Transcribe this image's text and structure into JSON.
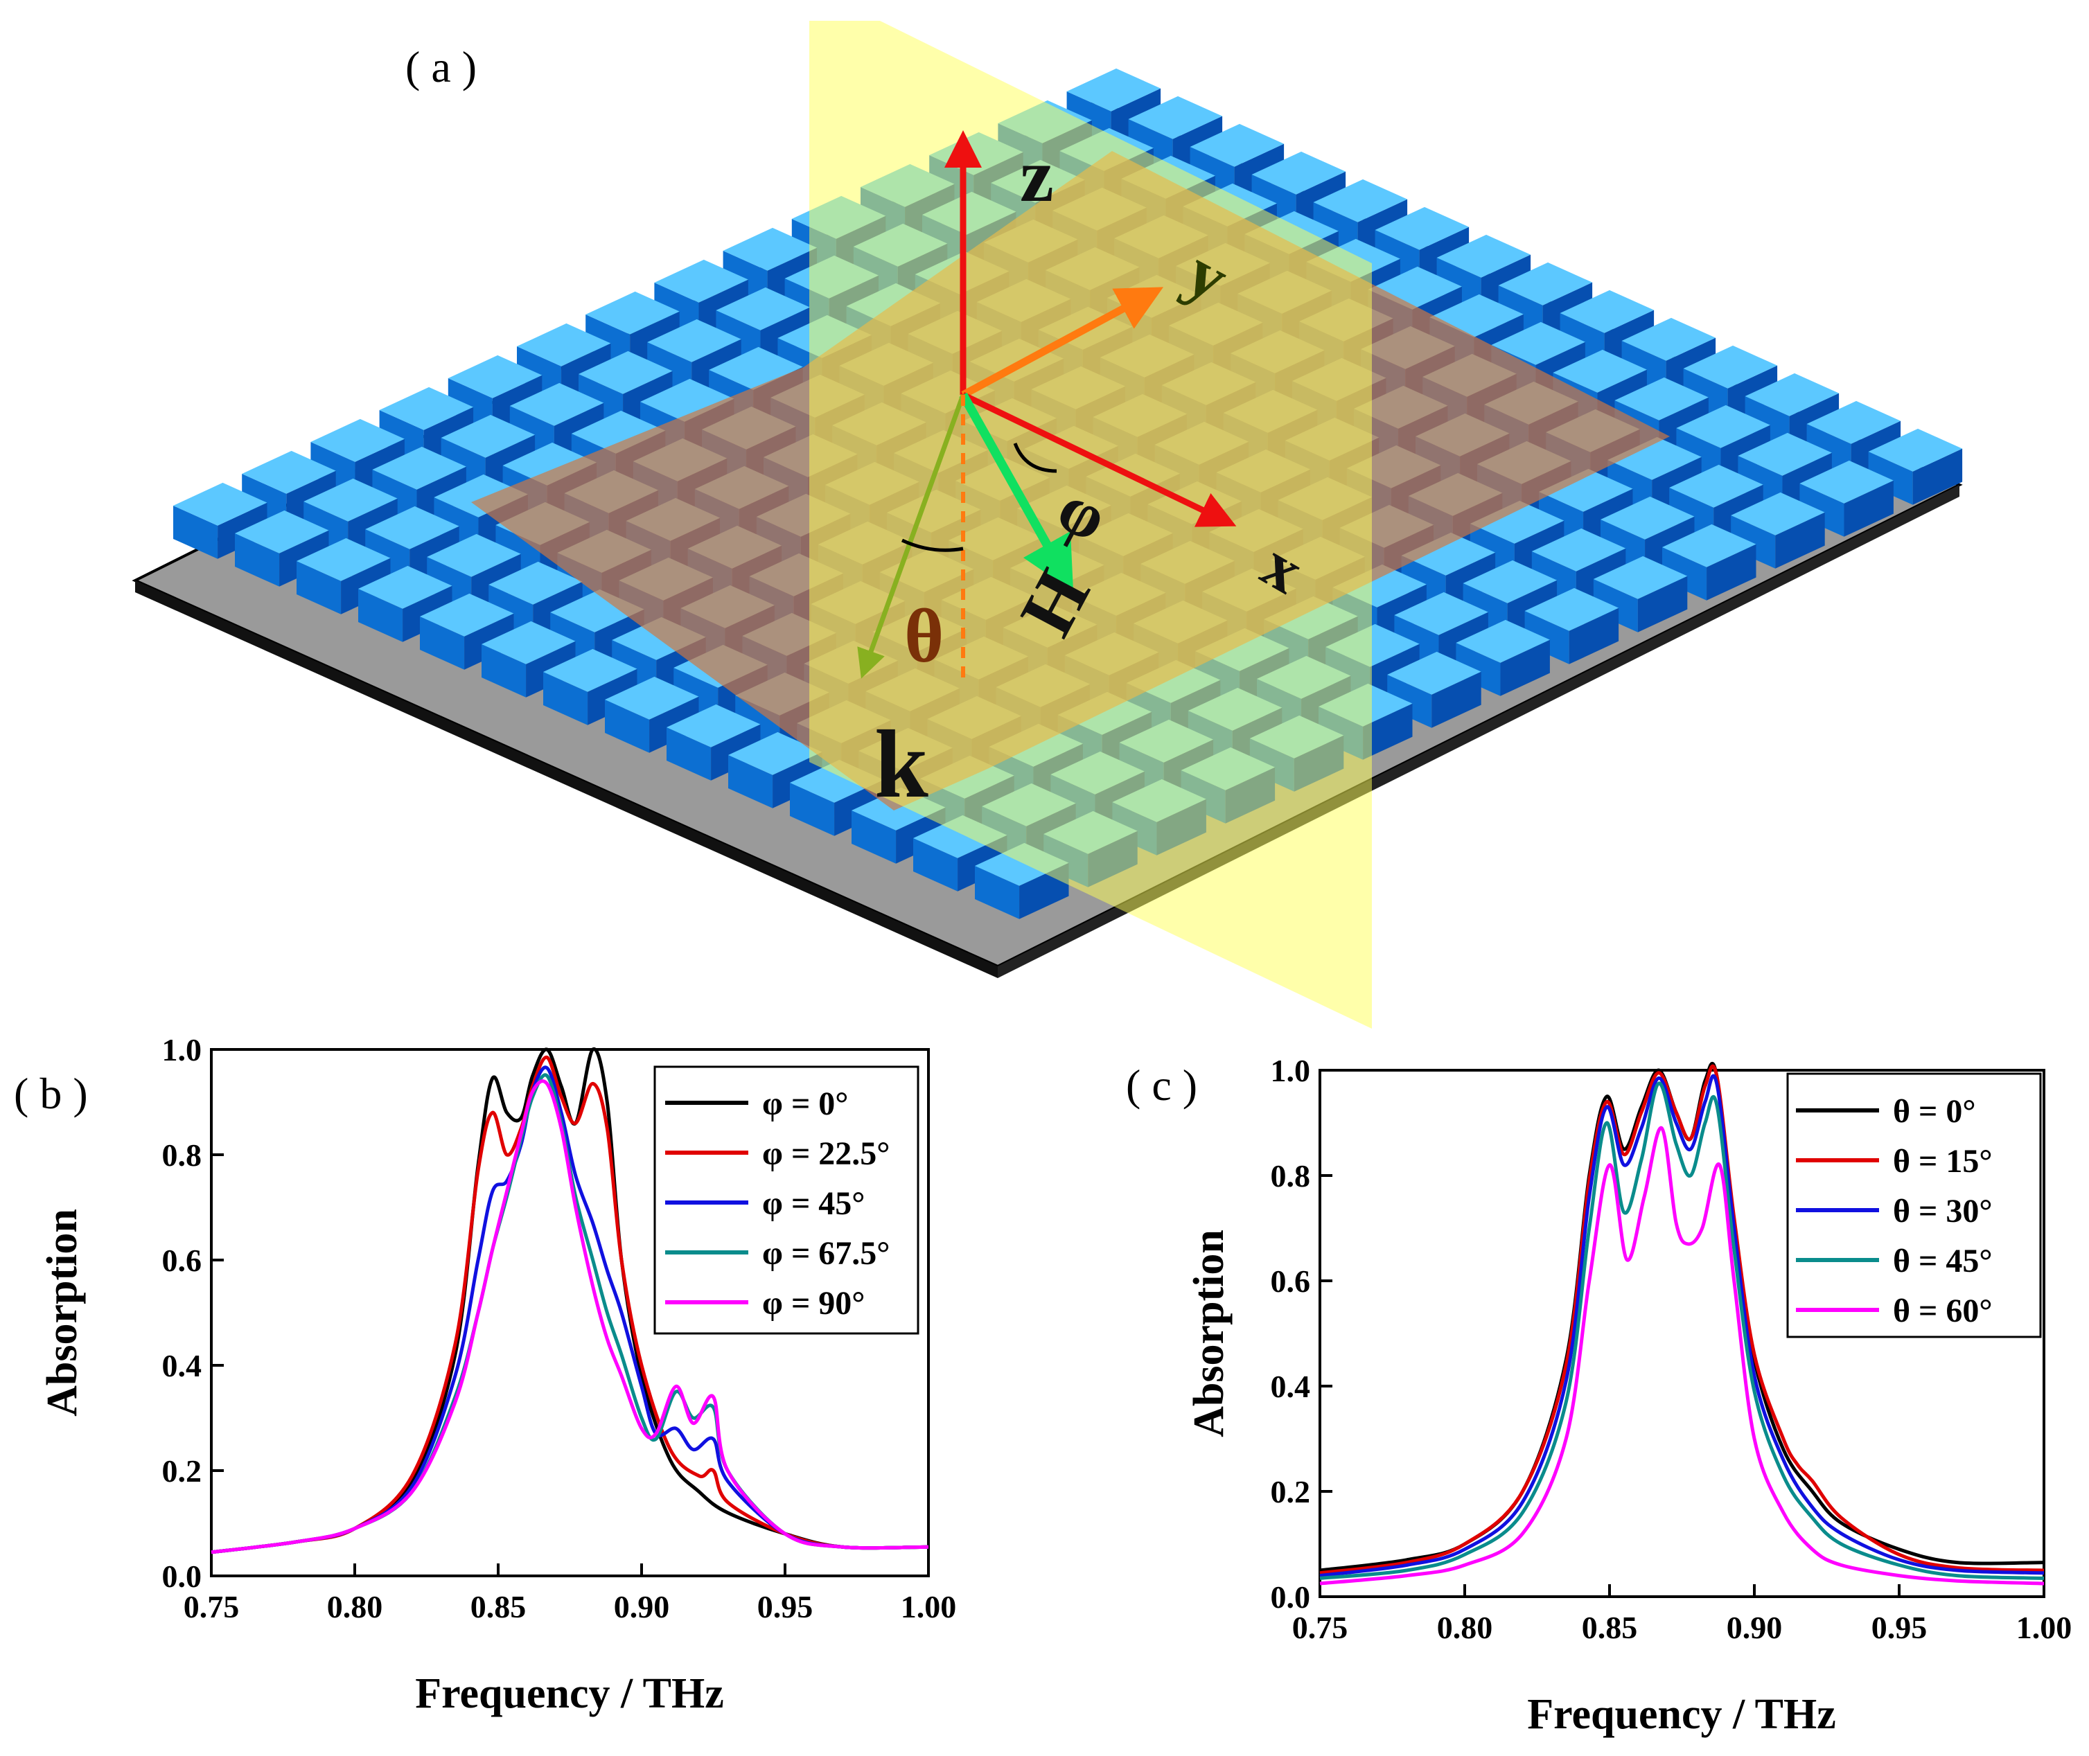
{
  "panels": {
    "a": {
      "label": "( a )",
      "axis_labels": {
        "z": "z",
        "y": "y",
        "x": "x",
        "k": "k",
        "H": "H",
        "theta": "θ",
        "phi": "φ"
      }
    }
  },
  "chart_data": [
    {
      "panel": "( b )",
      "type": "line",
      "xlabel": "Frequency / THz",
      "ylabel": "Absorption",
      "xlim": [
        0.75,
        1.0
      ],
      "ylim": [
        0.0,
        1.0
      ],
      "xticks": [
        "0.75",
        "0.80",
        "0.85",
        "0.90",
        "0.95",
        "1.00"
      ],
      "yticks": [
        "0.0",
        "0.2",
        "0.4",
        "0.6",
        "0.8",
        "1.0"
      ],
      "legend_position": "top-right",
      "series": [
        {
          "name": "φ = 0°",
          "color": "#000000",
          "x": [
            0.75,
            0.78,
            0.8,
            0.82,
            0.835,
            0.843,
            0.848,
            0.853,
            0.858,
            0.862,
            0.867,
            0.872,
            0.877,
            0.883,
            0.888,
            0.893,
            0.9,
            0.91,
            0.92,
            0.93,
            0.95,
            0.97,
            1.0
          ],
          "y": [
            0.045,
            0.065,
            0.09,
            0.18,
            0.42,
            0.78,
            0.945,
            0.88,
            0.87,
            0.95,
            1.0,
            0.93,
            0.86,
            1.0,
            0.9,
            0.6,
            0.38,
            0.22,
            0.16,
            0.12,
            0.08,
            0.055,
            0.055
          ]
        },
        {
          "name": "φ = 22.5°",
          "color": "#e00000",
          "x": [
            0.75,
            0.78,
            0.8,
            0.82,
            0.835,
            0.843,
            0.848,
            0.853,
            0.858,
            0.862,
            0.867,
            0.872,
            0.877,
            0.883,
            0.888,
            0.893,
            0.9,
            0.91,
            0.92,
            0.925,
            0.93,
            0.95,
            0.97,
            1.0
          ],
          "y": [
            0.045,
            0.065,
            0.09,
            0.19,
            0.44,
            0.77,
            0.88,
            0.8,
            0.85,
            0.93,
            0.985,
            0.91,
            0.86,
            0.935,
            0.85,
            0.6,
            0.4,
            0.24,
            0.19,
            0.2,
            0.14,
            0.08,
            0.055,
            0.055
          ]
        },
        {
          "name": "φ = 45°",
          "color": "#1010e0",
          "x": [
            0.75,
            0.78,
            0.8,
            0.82,
            0.835,
            0.843,
            0.848,
            0.853,
            0.858,
            0.862,
            0.867,
            0.872,
            0.877,
            0.883,
            0.888,
            0.893,
            0.9,
            0.905,
            0.912,
            0.918,
            0.925,
            0.93,
            0.95,
            0.97,
            1.0
          ],
          "y": [
            0.045,
            0.065,
            0.09,
            0.17,
            0.38,
            0.6,
            0.73,
            0.75,
            0.82,
            0.92,
            0.965,
            0.88,
            0.76,
            0.67,
            0.58,
            0.5,
            0.36,
            0.27,
            0.28,
            0.24,
            0.26,
            0.18,
            0.08,
            0.055,
            0.055
          ]
        },
        {
          "name": "φ = 67.5°",
          "color": "#0a8c8c",
          "x": [
            0.75,
            0.78,
            0.8,
            0.82,
            0.835,
            0.843,
            0.848,
            0.853,
            0.858,
            0.862,
            0.867,
            0.872,
            0.877,
            0.883,
            0.888,
            0.893,
            0.9,
            0.905,
            0.912,
            0.918,
            0.925,
            0.93,
            0.95,
            0.97,
            1.0
          ],
          "y": [
            0.045,
            0.065,
            0.09,
            0.16,
            0.34,
            0.5,
            0.62,
            0.72,
            0.83,
            0.91,
            0.95,
            0.86,
            0.72,
            0.6,
            0.5,
            0.42,
            0.3,
            0.26,
            0.35,
            0.3,
            0.32,
            0.2,
            0.08,
            0.055,
            0.055
          ]
        },
        {
          "name": "φ = 90°",
          "color": "#ff00ff",
          "x": [
            0.75,
            0.78,
            0.8,
            0.82,
            0.835,
            0.843,
            0.848,
            0.853,
            0.858,
            0.862,
            0.867,
            0.872,
            0.877,
            0.883,
            0.888,
            0.893,
            0.9,
            0.905,
            0.912,
            0.918,
            0.925,
            0.93,
            0.95,
            0.97,
            1.0
          ],
          "y": [
            0.045,
            0.065,
            0.09,
            0.16,
            0.33,
            0.5,
            0.62,
            0.73,
            0.84,
            0.92,
            0.935,
            0.85,
            0.7,
            0.55,
            0.45,
            0.38,
            0.28,
            0.27,
            0.36,
            0.29,
            0.34,
            0.2,
            0.08,
            0.055,
            0.055
          ]
        }
      ]
    },
    {
      "panel": "( c )",
      "type": "line",
      "xlabel": "Frequency / THz",
      "ylabel": "Absorption",
      "xlim": [
        0.75,
        1.0
      ],
      "ylim": [
        0.0,
        1.0
      ],
      "xticks": [
        "0.75",
        "0.80",
        "0.85",
        "0.90",
        "0.95",
        "1.00"
      ],
      "yticks": [
        "0.0",
        "0.2",
        "0.4",
        "0.6",
        "0.8",
        "1.0"
      ],
      "legend_position": "top-right",
      "series": [
        {
          "name": "θ = 0°",
          "color": "#000000",
          "x": [
            0.75,
            0.78,
            0.8,
            0.82,
            0.835,
            0.843,
            0.849,
            0.855,
            0.861,
            0.867,
            0.873,
            0.878,
            0.883,
            0.887,
            0.893,
            0.9,
            0.91,
            0.92,
            0.93,
            0.95,
            0.97,
            1.0
          ],
          "y": [
            0.05,
            0.07,
            0.1,
            0.2,
            0.45,
            0.8,
            0.95,
            0.85,
            0.93,
            1.0,
            0.92,
            0.87,
            0.98,
            0.99,
            0.7,
            0.45,
            0.28,
            0.2,
            0.14,
            0.09,
            0.065,
            0.065
          ]
        },
        {
          "name": "θ = 15°",
          "color": "#e00000",
          "x": [
            0.75,
            0.78,
            0.8,
            0.82,
            0.835,
            0.843,
            0.849,
            0.855,
            0.861,
            0.867,
            0.873,
            0.878,
            0.883,
            0.887,
            0.893,
            0.9,
            0.91,
            0.915,
            0.92,
            0.93,
            0.95,
            0.97,
            1.0
          ],
          "y": [
            0.045,
            0.065,
            0.1,
            0.2,
            0.44,
            0.79,
            0.94,
            0.84,
            0.92,
            0.995,
            0.92,
            0.87,
            0.97,
            0.99,
            0.72,
            0.46,
            0.3,
            0.25,
            0.22,
            0.15,
            0.08,
            0.055,
            0.05
          ]
        },
        {
          "name": "θ = 30°",
          "color": "#1010e0",
          "x": [
            0.75,
            0.78,
            0.8,
            0.82,
            0.835,
            0.843,
            0.849,
            0.855,
            0.861,
            0.867,
            0.873,
            0.878,
            0.883,
            0.887,
            0.893,
            0.9,
            0.91,
            0.92,
            0.93,
            0.95,
            0.97,
            1.0
          ],
          "y": [
            0.04,
            0.06,
            0.09,
            0.18,
            0.41,
            0.76,
            0.93,
            0.82,
            0.89,
            0.985,
            0.9,
            0.85,
            0.94,
            0.975,
            0.7,
            0.42,
            0.26,
            0.17,
            0.12,
            0.07,
            0.05,
            0.045
          ]
        },
        {
          "name": "θ = 45°",
          "color": "#0a8c8c",
          "x": [
            0.75,
            0.78,
            0.8,
            0.82,
            0.835,
            0.843,
            0.849,
            0.855,
            0.861,
            0.867,
            0.873,
            0.878,
            0.883,
            0.887,
            0.893,
            0.9,
            0.91,
            0.92,
            0.93,
            0.95,
            0.97,
            1.0
          ],
          "y": [
            0.035,
            0.05,
            0.08,
            0.16,
            0.37,
            0.7,
            0.9,
            0.73,
            0.83,
            0.975,
            0.86,
            0.8,
            0.9,
            0.935,
            0.66,
            0.39,
            0.23,
            0.15,
            0.1,
            0.06,
            0.04,
            0.035
          ]
        },
        {
          "name": "θ = 60°",
          "color": "#ff00ff",
          "x": [
            0.75,
            0.78,
            0.8,
            0.82,
            0.835,
            0.843,
            0.85,
            0.856,
            0.862,
            0.868,
            0.873,
            0.877,
            0.882,
            0.888,
            0.893,
            0.9,
            0.91,
            0.92,
            0.93,
            0.95,
            0.97,
            1.0
          ],
          "y": [
            0.025,
            0.04,
            0.06,
            0.12,
            0.3,
            0.6,
            0.82,
            0.64,
            0.76,
            0.89,
            0.71,
            0.67,
            0.7,
            0.82,
            0.6,
            0.3,
            0.16,
            0.09,
            0.06,
            0.04,
            0.03,
            0.025
          ]
        }
      ]
    }
  ]
}
